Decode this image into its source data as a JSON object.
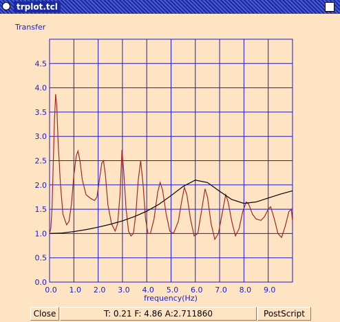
{
  "window": {
    "title": "trplot.tcl",
    "close_button": "Close",
    "status": "T: 0.21 F: 4.86 A:2.711860",
    "postscript_button": "PostScript"
  },
  "chart_data": {
    "type": "line",
    "y_label": "Transfer",
    "x_label": "frequency(Hz)",
    "xlim": [
      0,
      10
    ],
    "ylim": [
      0,
      5
    ],
    "grid": true,
    "grid_color": "#1a1acc",
    "xticks": [
      {
        "value": 0,
        "label": "0.0"
      },
      {
        "value": 1,
        "label": "1.0"
      },
      {
        "value": 2,
        "label": "2.0"
      },
      {
        "value": 3,
        "label": "3.0"
      },
      {
        "value": 4,
        "label": "4.0"
      },
      {
        "value": 5,
        "label": "5.0"
      },
      {
        "value": 6,
        "label": "6.0"
      },
      {
        "value": 7,
        "label": "7.0"
      },
      {
        "value": 8,
        "label": "8.0"
      },
      {
        "value": 9,
        "label": "9.0"
      }
    ],
    "yticks": [
      {
        "value": 0,
        "label": "0.0"
      },
      {
        "value": 0.5,
        "label": "0.5"
      },
      {
        "value": 1,
        "label": "1.0"
      },
      {
        "value": 1.5,
        "label": "1.5"
      },
      {
        "value": 2,
        "label": "2.0"
      },
      {
        "value": 2.5,
        "label": "2.5"
      },
      {
        "value": 3,
        "label": "3.0"
      },
      {
        "value": 3.5,
        "label": "3.5"
      },
      {
        "value": 4,
        "label": "4.0"
      },
      {
        "value": 4.5,
        "label": "4.5"
      }
    ],
    "series": [
      {
        "color": "#a02828",
        "x": [
          0,
          0.05,
          0.1,
          0.15,
          0.2,
          0.25,
          0.3,
          0.35,
          0.45,
          0.55,
          0.7,
          0.8,
          0.9,
          1.0,
          1.1,
          1.17,
          1.25,
          1.35,
          1.5,
          1.7,
          1.85,
          1.95,
          2.05,
          2.15,
          2.22,
          2.3,
          2.4,
          2.55,
          2.7,
          2.8,
          2.9,
          2.98,
          3.05,
          3.15,
          3.25,
          3.35,
          3.45,
          3.55,
          3.65,
          3.75,
          3.85,
          3.95,
          4.05,
          4.15,
          4.3,
          4.45,
          4.55,
          4.65,
          4.8,
          4.95,
          5.1,
          5.3,
          5.45,
          5.55,
          5.65,
          5.8,
          5.95,
          6.1,
          6.25,
          6.4,
          6.5,
          6.65,
          6.8,
          6.95,
          7.1,
          7.25,
          7.35,
          7.5,
          7.65,
          7.8,
          7.95,
          8.1,
          8.2,
          8.35,
          8.5,
          8.7,
          8.85,
          9.0,
          9.1,
          9.25,
          9.4,
          9.55,
          9.7,
          9.85,
          9.95,
          10
        ],
        "values": [
          1.0,
          1.1,
          1.5,
          2.4,
          3.3,
          3.87,
          3.6,
          2.9,
          2.0,
          1.4,
          1.18,
          1.25,
          1.6,
          2.2,
          2.6,
          2.7,
          2.5,
          2.1,
          1.8,
          1.72,
          1.68,
          1.75,
          2.1,
          2.45,
          2.5,
          2.2,
          1.6,
          1.2,
          1.05,
          1.2,
          1.8,
          2.72,
          2.3,
          1.5,
          1.05,
          0.95,
          1.0,
          1.4,
          2.1,
          2.5,
          2.0,
          1.3,
          1.0,
          1.0,
          1.3,
          1.85,
          2.05,
          1.9,
          1.4,
          1.05,
          1.0,
          1.25,
          1.7,
          1.95,
          1.8,
          1.3,
          0.95,
          1.0,
          1.45,
          1.92,
          1.75,
          1.2,
          0.88,
          1.0,
          1.4,
          1.8,
          1.65,
          1.25,
          0.95,
          1.1,
          1.45,
          1.65,
          1.6,
          1.4,
          1.3,
          1.27,
          1.35,
          1.5,
          1.55,
          1.3,
          1.0,
          0.92,
          1.15,
          1.45,
          1.5,
          1.25
        ]
      },
      {
        "color": "#000000",
        "x": [
          0,
          0.5,
          1,
          1.5,
          2,
          2.5,
          3,
          3.5,
          4,
          4.5,
          5,
          5.5,
          6,
          6.5,
          7,
          7.5,
          8,
          8.5,
          9,
          9.5,
          10
        ],
        "values": [
          1.0,
          1.01,
          1.04,
          1.08,
          1.13,
          1.19,
          1.26,
          1.35,
          1.46,
          1.6,
          1.78,
          1.97,
          2.1,
          2.05,
          1.87,
          1.7,
          1.62,
          1.65,
          1.73,
          1.81,
          1.88
        ]
      }
    ]
  }
}
